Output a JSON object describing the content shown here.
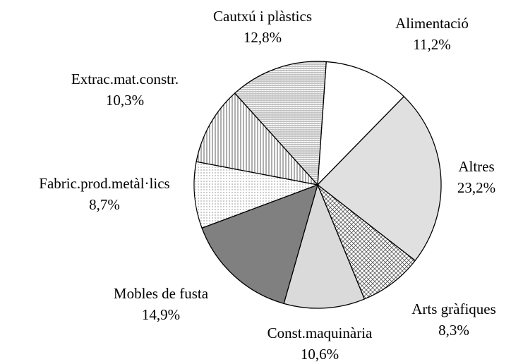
{
  "chart_data": {
    "type": "pie",
    "categories": [
      "Alimentació",
      "Altres",
      "Arts gràfiques",
      "Const.maquinària",
      "Mobles de fusta",
      "Fabric.prod.metàl·lics",
      "Extrac.mat.constr.",
      "Cautxú i plàstics"
    ],
    "values": [
      11.2,
      23.2,
      8.3,
      10.6,
      14.9,
      8.7,
      10.3,
      12.8
    ],
    "value_labels": [
      "11,2%",
      "23,2%",
      "8,3%",
      "10,6%",
      "14,9%",
      "8,7%",
      "10,3%",
      "12,8%"
    ],
    "colors": [
      "#ffffff",
      "#e0e0e0",
      "#c0c0c0",
      "#dadada",
      "#808080",
      "#eeeeee",
      "#d0d0d0",
      "#e4e4e4"
    ]
  }
}
